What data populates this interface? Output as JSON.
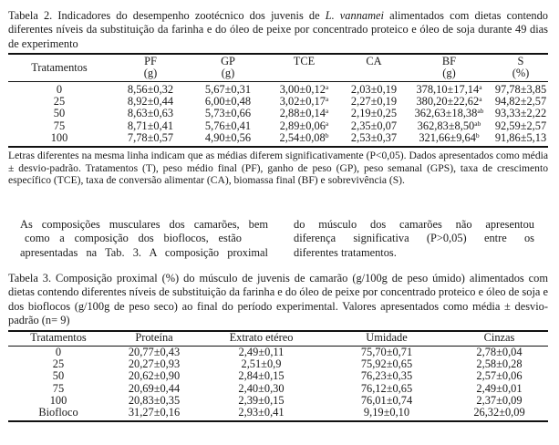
{
  "table2": {
    "caption_before": "Tabela 2. Indicadores do desempenho zootécnico dos juvenis de ",
    "caption_species": "L. vannamei",
    "caption_after": " alimentados com dietas contendo diferentes níveis da substituição da farinha e do óleo de peixe por concentrado proteico e óleo de soja durante 49 dias de experimento",
    "header_row_label": "Tratamentos",
    "columns": [
      {
        "name": "PF",
        "unit": "(g)"
      },
      {
        "name": "GP",
        "unit": "(g)"
      },
      {
        "name": "TCE",
        "unit": ""
      },
      {
        "name": "CA",
        "unit": ""
      },
      {
        "name": "BF",
        "unit": "(g)"
      },
      {
        "name": "S",
        "unit": "(%)"
      }
    ],
    "rows": [
      {
        "t": "0",
        "v": [
          [
            "8,56±0,32",
            ""
          ],
          [
            "5,67±0,31",
            ""
          ],
          [
            "3,00±0,12",
            "a"
          ],
          [
            "2,03±0,19",
            ""
          ],
          [
            "378,10±17,14",
            "a"
          ],
          [
            "97,78±3,85",
            ""
          ]
        ]
      },
      {
        "t": "25",
        "v": [
          [
            "8,92±0,44",
            ""
          ],
          [
            "6,00±0,48",
            ""
          ],
          [
            "3,02±0,17",
            "a"
          ],
          [
            "2,27±0,19",
            ""
          ],
          [
            "380,20±22,62",
            "a"
          ],
          [
            "94,82±2,57",
            ""
          ]
        ]
      },
      {
        "t": "50",
        "v": [
          [
            "8,63±0,63",
            ""
          ],
          [
            "5,73±0,66",
            ""
          ],
          [
            "2,88±0,14",
            "a"
          ],
          [
            "2,19±0,25",
            ""
          ],
          [
            "362,63±18,38",
            "ab"
          ],
          [
            "93,33±2,22",
            ""
          ]
        ]
      },
      {
        "t": "75",
        "v": [
          [
            "8,71±0,41",
            ""
          ],
          [
            "5,76±0,41",
            ""
          ],
          [
            "2,89±0,06",
            "a"
          ],
          [
            "2,35±0,07",
            ""
          ],
          [
            "362,83±8,50",
            "ab"
          ],
          [
            "92,59±2,57",
            ""
          ]
        ]
      },
      {
        "t": "100",
        "v": [
          [
            "7,78±0,57",
            ""
          ],
          [
            "4,90±0,56",
            ""
          ],
          [
            "2,54±0,08",
            "b"
          ],
          [
            "2,53±0,37",
            ""
          ],
          [
            "321,66±9,64",
            "b"
          ],
          [
            "91,86±5,13",
            ""
          ]
        ]
      }
    ],
    "note": "Letras diferentes na mesma linha indicam que as médias diferem significativamente (P<0,05). Dados apresentados como média ± desvio-padrão. Tratamentos (T), peso médio final (PF), ganho de peso (GP), peso semanal (GPS), taxa de crescimento específico (TCE), taxa de conversão alimentar (CA), biomassa final (BF) e sobrevivência (S)."
  },
  "body": {
    "left_lines": [
      "As composições musculares dos camarões, bem",
      "como a composição dos bioflocos, estão",
      "apresentadas na Tab. 3. A composição proximal"
    ],
    "right_lines": [
      "do músculo dos camarões não apresentou",
      "diferença significativa (P>0,05) entre os",
      "diferentes tratamentos."
    ]
  },
  "table3": {
    "caption": "Tabela 3. Composição proximal (%) do músculo de juvenis de camarão (g/100g de peso úmido) alimentados com dietas contendo diferentes níveis de substituição da farinha e do óleo de peixe por concentrado proteico e óleo de soja e dos bioflocos (g/100g de peso seco) ao final do período experimental. Valores apresentados como média ± desvio-padrão (n= 9)",
    "headers": [
      "Tratamentos",
      "Proteína",
      "Extrato etéreo",
      "Umidade",
      "Cinzas"
    ],
    "rows": [
      [
        "0",
        "20,77±0,43",
        "2,49±0,11",
        "75,70±0,71",
        "2,78±0,04"
      ],
      [
        "25",
        "20,27±0,93",
        "2,51±0,9",
        "75,92±0,65",
        "2,58±0,28"
      ],
      [
        "50",
        "20,62±0,90",
        "2,84±0,15",
        "76,23±0,35",
        "2,57±0,06"
      ],
      [
        "75",
        "20,69±0,44",
        "2,40±0,30",
        "76,12±0,65",
        "2,49±0,01"
      ],
      [
        "100",
        "20,83±0,35",
        "2,39±0,15",
        "76,01±0,74",
        "2,37±0,09"
      ],
      [
        "Biofloco",
        "31,27±0,16",
        "2,93±0,41",
        "9,19±0,10",
        "26,32±0,09"
      ]
    ]
  }
}
